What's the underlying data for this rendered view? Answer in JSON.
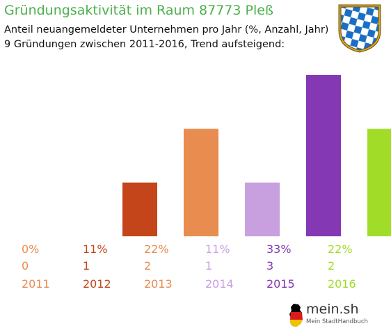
{
  "header": {
    "title": "Gründungsaktivität im Raum 87773 Pleß",
    "subtitle_line1": "Anteil neuangemeldeter Unternehmen pro Jahr (%, Anzahl, Jahr)",
    "subtitle_line2": "9 Gründungen zwischen 2011-2016, Trend aufsteigend:"
  },
  "logo": {
    "name": "mein.sh",
    "tagline": "Mein StadtHandbuch",
    "icon": "germany-map-icon"
  },
  "crest": {
    "icon": "bavarian-lozenge-crest-icon"
  },
  "chart_data": {
    "type": "bar",
    "categories": [
      "2011",
      "2012",
      "2013",
      "2014",
      "2015",
      "2016"
    ],
    "series": [
      {
        "values": [
          0,
          11,
          22,
          11,
          33,
          22
        ]
      }
    ],
    "percent_labels": [
      "0%",
      "11%",
      "22%",
      "11%",
      "33%",
      "22%"
    ],
    "counts": [
      "0",
      "1",
      "2",
      "1",
      "3",
      "2"
    ],
    "colors": [
      "#e88c50",
      "#c4451a",
      "#e88c50",
      "#c8a0e0",
      "#8438b4",
      "#a0dc28"
    ],
    "ylim": [
      0,
      33
    ],
    "grid": false
  }
}
